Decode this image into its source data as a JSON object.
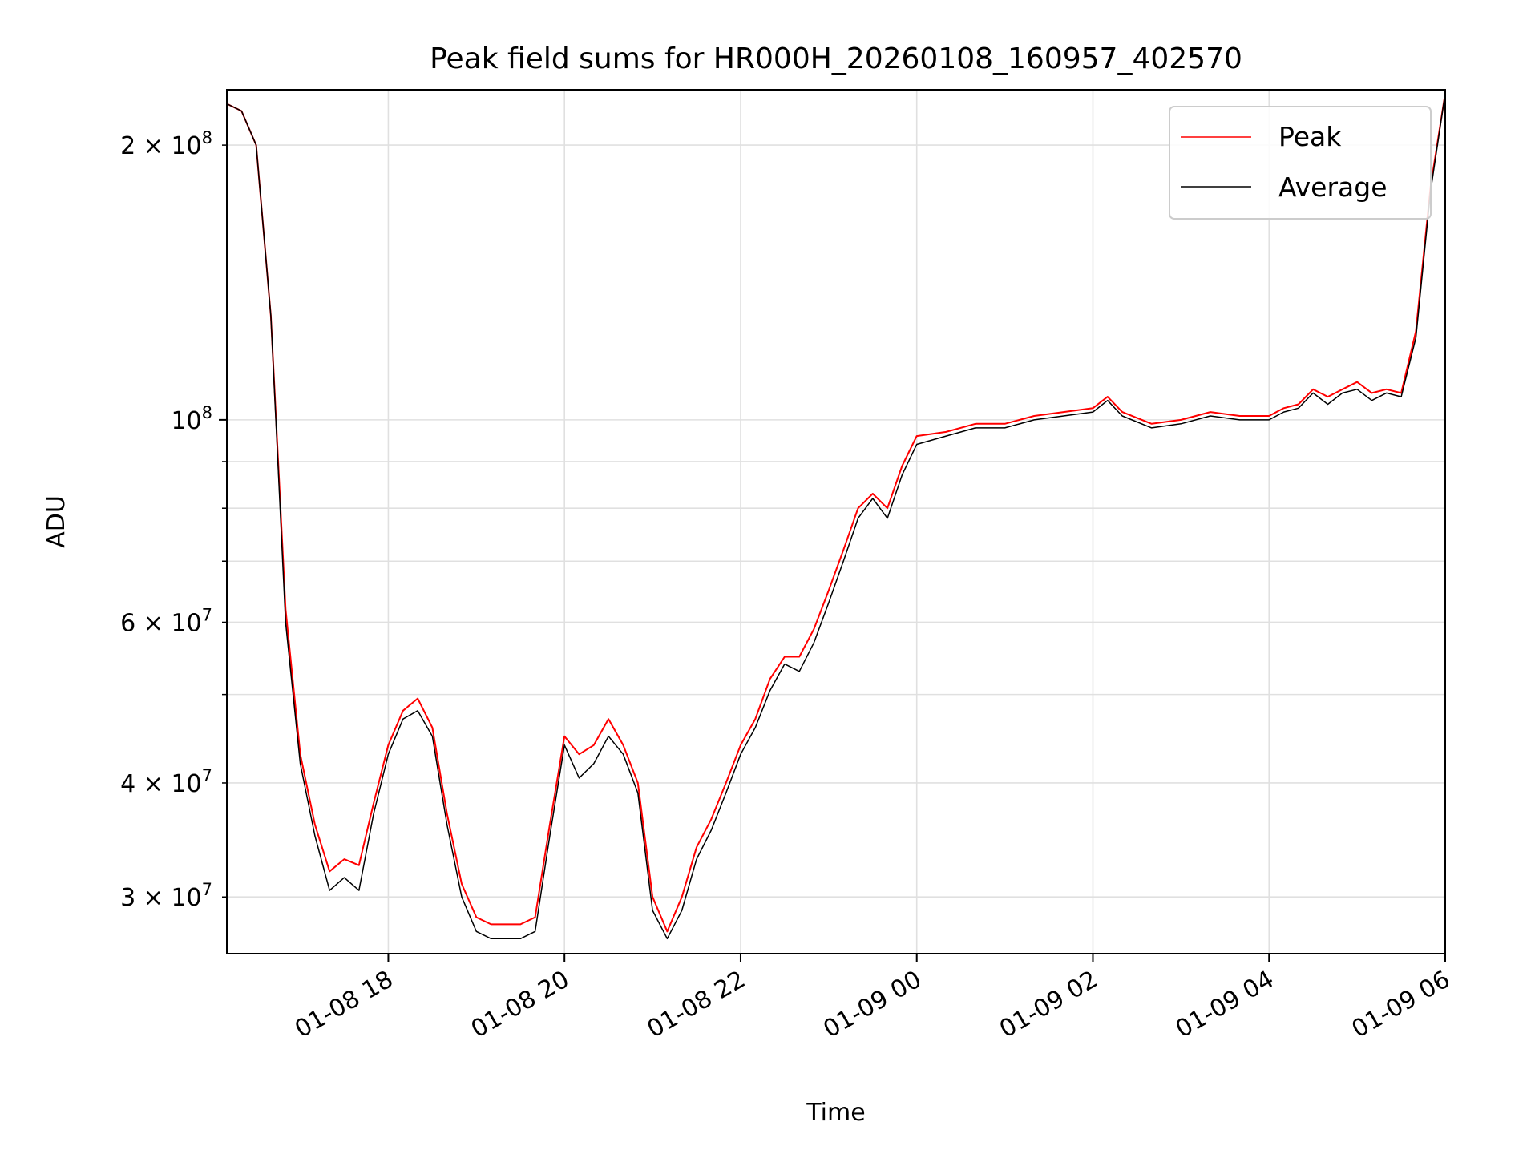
{
  "chart_data": {
    "type": "line",
    "title": "Peak field sums for HR000H_20260108_160957_402570",
    "xlabel": "Time",
    "ylabel": "ADU",
    "yscale": "log",
    "ylim": [
      26000000,
      230000000
    ],
    "xlim": [
      "2026-01-08 16:10",
      "2026-01-09 06:00"
    ],
    "grid": true,
    "legend_position": "top-right",
    "x_ticks": [
      "2026-01-08 18:00",
      "2026-01-08 20:00",
      "2026-01-08 22:00",
      "2026-01-09 00:00",
      "2026-01-09 02:00",
      "2026-01-09 04:00",
      "2026-01-09 06:00"
    ],
    "x_tick_labels": [
      "01-08 18",
      "01-08 20",
      "01-08 22",
      "01-09 00",
      "01-09 02",
      "01-09 04",
      "01-09 06"
    ],
    "y_ticks_major": [
      {
        "value": 100000000,
        "mantissa": "",
        "base": "10",
        "exp": "8"
      }
    ],
    "y_ticks_minor": [
      {
        "value": 30000000,
        "mantissa": "3 × ",
        "base": "10",
        "exp": "7"
      },
      {
        "value": 40000000,
        "mantissa": "4 × ",
        "base": "10",
        "exp": "7"
      },
      {
        "value": 50000000,
        "mantissa": "",
        "base": "",
        "exp": ""
      },
      {
        "value": 60000000,
        "mantissa": "6 × ",
        "base": "10",
        "exp": "7"
      },
      {
        "value": 70000000,
        "mantissa": "",
        "base": "",
        "exp": ""
      },
      {
        "value": 80000000,
        "mantissa": "",
        "base": "",
        "exp": ""
      },
      {
        "value": 90000000,
        "mantissa": "",
        "base": "",
        "exp": ""
      },
      {
        "value": 200000000,
        "mantissa": "2 × ",
        "base": "10",
        "exp": "8"
      }
    ],
    "series": [
      {
        "name": "Peak",
        "color": "#ff0000",
        "x": [
          "2026-01-08 16:10",
          "2026-01-08 16:20",
          "2026-01-08 16:30",
          "2026-01-08 16:40",
          "2026-01-08 16:50",
          "2026-01-08 17:00",
          "2026-01-08 17:10",
          "2026-01-08 17:20",
          "2026-01-08 17:30",
          "2026-01-08 17:40",
          "2026-01-08 17:50",
          "2026-01-08 18:00",
          "2026-01-08 18:10",
          "2026-01-08 18:20",
          "2026-01-08 18:30",
          "2026-01-08 18:40",
          "2026-01-08 18:50",
          "2026-01-08 19:00",
          "2026-01-08 19:10",
          "2026-01-08 19:20",
          "2026-01-08 19:30",
          "2026-01-08 19:40",
          "2026-01-08 19:50",
          "2026-01-08 20:00",
          "2026-01-08 20:10",
          "2026-01-08 20:20",
          "2026-01-08 20:30",
          "2026-01-08 20:40",
          "2026-01-08 20:50",
          "2026-01-08 21:00",
          "2026-01-08 21:10",
          "2026-01-08 21:20",
          "2026-01-08 21:30",
          "2026-01-08 21:40",
          "2026-01-08 21:50",
          "2026-01-08 22:00",
          "2026-01-08 22:10",
          "2026-01-08 22:20",
          "2026-01-08 22:30",
          "2026-01-08 22:40",
          "2026-01-08 22:50",
          "2026-01-08 23:00",
          "2026-01-08 23:10",
          "2026-01-08 23:20",
          "2026-01-08 23:30",
          "2026-01-08 23:40",
          "2026-01-08 23:50",
          "2026-01-09 00:00",
          "2026-01-09 00:20",
          "2026-01-09 00:40",
          "2026-01-09 01:00",
          "2026-01-09 01:20",
          "2026-01-09 01:40",
          "2026-01-09 02:00",
          "2026-01-09 02:10",
          "2026-01-09 02:20",
          "2026-01-09 02:40",
          "2026-01-09 03:00",
          "2026-01-09 03:20",
          "2026-01-09 03:40",
          "2026-01-09 04:00",
          "2026-01-09 04:10",
          "2026-01-09 04:20",
          "2026-01-09 04:30",
          "2026-01-09 04:40",
          "2026-01-09 04:50",
          "2026-01-09 05:00",
          "2026-01-09 05:10",
          "2026-01-09 05:20",
          "2026-01-09 05:30",
          "2026-01-09 05:40",
          "2026-01-09 05:50",
          "2026-01-09 06:00"
        ],
        "y": [
          222000000,
          218000000,
          200000000,
          130000000,
          62000000,
          43000000,
          36000000,
          32000000,
          33000000,
          32500000,
          38000000,
          44000000,
          48000000,
          49500000,
          46000000,
          37000000,
          31000000,
          28500000,
          28000000,
          28000000,
          28000000,
          28500000,
          36000000,
          45000000,
          43000000,
          44000000,
          47000000,
          44000000,
          40000000,
          30000000,
          27500000,
          30000000,
          34000000,
          36500000,
          40000000,
          44000000,
          47000000,
          52000000,
          55000000,
          55000000,
          59000000,
          65000000,
          72000000,
          80000000,
          83000000,
          80000000,
          89000000,
          96000000,
          97000000,
          99000000,
          99000000,
          101000000,
          102000000,
          103000000,
          106000000,
          102000000,
          99000000,
          100000000,
          102000000,
          101000000,
          101000000,
          103000000,
          104000000,
          108000000,
          106000000,
          108000000,
          110000000,
          107000000,
          108000000,
          107000000,
          125000000,
          180000000,
          228000000
        ]
      },
      {
        "name": "Average",
        "color": "#000000",
        "x": [
          "2026-01-08 16:10",
          "2026-01-08 16:20",
          "2026-01-08 16:30",
          "2026-01-08 16:40",
          "2026-01-08 16:50",
          "2026-01-08 17:00",
          "2026-01-08 17:10",
          "2026-01-08 17:20",
          "2026-01-08 17:30",
          "2026-01-08 17:40",
          "2026-01-08 17:50",
          "2026-01-08 18:00",
          "2026-01-08 18:10",
          "2026-01-08 18:20",
          "2026-01-08 18:30",
          "2026-01-08 18:40",
          "2026-01-08 18:50",
          "2026-01-08 19:00",
          "2026-01-08 19:10",
          "2026-01-08 19:20",
          "2026-01-08 19:30",
          "2026-01-08 19:40",
          "2026-01-08 19:50",
          "2026-01-08 20:00",
          "2026-01-08 20:10",
          "2026-01-08 20:20",
          "2026-01-08 20:30",
          "2026-01-08 20:40",
          "2026-01-08 20:50",
          "2026-01-08 21:00",
          "2026-01-08 21:10",
          "2026-01-08 21:20",
          "2026-01-08 21:30",
          "2026-01-08 21:40",
          "2026-01-08 21:50",
          "2026-01-08 22:00",
          "2026-01-08 22:10",
          "2026-01-08 22:20",
          "2026-01-08 22:30",
          "2026-01-08 22:40",
          "2026-01-08 22:50",
          "2026-01-08 23:00",
          "2026-01-08 23:10",
          "2026-01-08 23:20",
          "2026-01-08 23:30",
          "2026-01-08 23:40",
          "2026-01-08 23:50",
          "2026-01-09 00:00",
          "2026-01-09 00:20",
          "2026-01-09 00:40",
          "2026-01-09 01:00",
          "2026-01-09 01:20",
          "2026-01-09 01:40",
          "2026-01-09 02:00",
          "2026-01-09 02:10",
          "2026-01-09 02:20",
          "2026-01-09 02:40",
          "2026-01-09 03:00",
          "2026-01-09 03:20",
          "2026-01-09 03:40",
          "2026-01-09 04:00",
          "2026-01-09 04:10",
          "2026-01-09 04:20",
          "2026-01-09 04:30",
          "2026-01-09 04:40",
          "2026-01-09 04:50",
          "2026-01-09 05:00",
          "2026-01-09 05:10",
          "2026-01-09 05:20",
          "2026-01-09 05:30",
          "2026-01-09 05:40",
          "2026-01-09 05:50",
          "2026-01-09 06:00"
        ],
        "y": [
          222000000,
          218000000,
          200000000,
          130000000,
          60000000,
          42000000,
          35000000,
          30500000,
          31500000,
          30500000,
          37000000,
          43000000,
          47000000,
          48000000,
          45000000,
          36000000,
          30000000,
          27500000,
          27000000,
          27000000,
          27000000,
          27500000,
          35000000,
          44000000,
          40500000,
          42000000,
          45000000,
          43000000,
          39000000,
          29000000,
          27000000,
          29000000,
          33000000,
          35500000,
          39000000,
          43000000,
          46000000,
          50500000,
          54000000,
          53000000,
          57000000,
          63000000,
          70000000,
          78000000,
          82000000,
          78000000,
          87000000,
          94000000,
          96000000,
          98000000,
          98000000,
          100000000,
          101000000,
          102000000,
          105000000,
          101000000,
          98000000,
          99000000,
          101000000,
          100000000,
          100000000,
          102000000,
          103000000,
          107000000,
          104000000,
          107000000,
          108000000,
          105000000,
          107000000,
          106000000,
          123000000,
          178000000,
          228000000
        ]
      }
    ]
  }
}
